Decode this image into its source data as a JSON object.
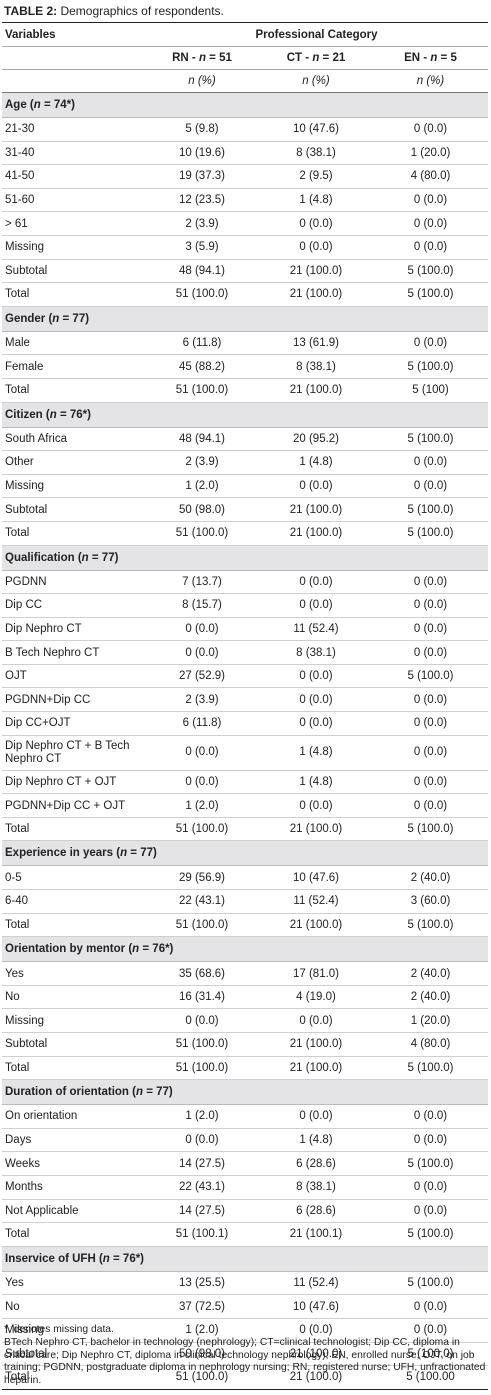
{
  "caption": {
    "label": "TABLE 2:",
    "text": " Demographics of respondents."
  },
  "header": {
    "variables": "Variables",
    "group": "Professional Category",
    "columns": [
      "RN - n = 51",
      "CT - n = 21",
      "EN - n = 5"
    ],
    "units": [
      "n (%)",
      "n (%)",
      "n (%)"
    ]
  },
  "sections": [
    {
      "title": "Age (n = 74*)",
      "rows": [
        {
          "label": "21-30",
          "values": [
            "5 (9.8)",
            "10 (47.6)",
            "0 (0.0)"
          ]
        },
        {
          "label": "31-40",
          "values": [
            "10 (19.6)",
            "8 (38.1)",
            "1 (20.0)"
          ]
        },
        {
          "label": "41-50",
          "values": [
            "19 (37.3)",
            "2 (9.5)",
            "4 (80.0)"
          ]
        },
        {
          "label": "51-60",
          "values": [
            "12 (23.5)",
            "1 (4.8)",
            "0 (0.0)"
          ]
        },
        {
          "label": "> 61",
          "values": [
            "2 (3.9)",
            "0 (0.0)",
            "0 (0.0)"
          ]
        },
        {
          "label": "Missing",
          "values": [
            "3 (5.9)",
            "0 (0.0)",
            "0 (0.0)"
          ]
        },
        {
          "label": "Subtotal",
          "values": [
            "48 (94.1)",
            "21 (100.0)",
            "5 (100.0)"
          ]
        },
        {
          "label": "Total",
          "values": [
            "51 (100.0)",
            "21 (100.0)",
            "5 (100.0)"
          ]
        }
      ]
    },
    {
      "title": "Gender (n = 77)",
      "rows": [
        {
          "label": "Male",
          "values": [
            "6 (11.8)",
            "13 (61.9)",
            "0 (0.0)"
          ]
        },
        {
          "label": "Female",
          "values": [
            "45 (88.2)",
            "8 (38.1)",
            "5 (100.0)"
          ]
        },
        {
          "label": "Total",
          "values": [
            "51 (100.0)",
            "21 (100.0)",
            "5 (100)"
          ]
        }
      ]
    },
    {
      "title": "Citizen (n = 76*)",
      "rows": [
        {
          "label": "South Africa",
          "values": [
            "48 (94.1)",
            "20 (95.2)",
            "5 (100.0)"
          ]
        },
        {
          "label": "Other",
          "values": [
            "2 (3.9)",
            "1 (4.8)",
            "0 (0.0)"
          ]
        },
        {
          "label": "Missing",
          "values": [
            "1 (2.0)",
            "0 (0.0)",
            "0 (0.0)"
          ]
        },
        {
          "label": "Subtotal",
          "values": [
            "50 (98.0)",
            "21 (100.0)",
            "5 (100.0)"
          ]
        },
        {
          "label": "Total",
          "values": [
            "51 (100.0)",
            "21 (100.0)",
            "5 (100.0)"
          ]
        }
      ]
    },
    {
      "title": "Qualification (n = 77)",
      "rows": [
        {
          "label": "PGDNN",
          "values": [
            "7 (13.7)",
            "0 (0.0)",
            "0 (0.0)"
          ]
        },
        {
          "label": "Dip CC",
          "values": [
            "8 (15.7)",
            "0 (0.0)",
            "0 (0.0)"
          ]
        },
        {
          "label": "Dip Nephro CT",
          "values": [
            "0 (0.0)",
            "11 (52.4)",
            "0 (0.0)"
          ]
        },
        {
          "label": "B Tech  Nephro CT",
          "values": [
            "0 (0.0)",
            "8 (38.1)",
            "0 (0.0)"
          ]
        },
        {
          "label": "OJT",
          "values": [
            "27 (52.9)",
            "0 (0.0)",
            "5 (100.0)"
          ]
        },
        {
          "label": "PGDNN+Dip CC",
          "values": [
            "2 (3.9)",
            "0 (0.0)",
            "0 (0.0)"
          ]
        },
        {
          "label": "Dip CC+OJT",
          "values": [
            "6 (11.8)",
            "0 (0.0)",
            "0 (0.0)"
          ]
        },
        {
          "label": "Dip Nephro CT + B Tech Nephro CT",
          "values": [
            "0 (0.0)",
            "1 (4.8)",
            "0 (0.0)"
          ],
          "tall": true
        },
        {
          "label": "Dip Nephro CT + OJT",
          "values": [
            "0 (0.0)",
            "1 (4.8)",
            "0 (0.0)"
          ]
        },
        {
          "label": "PGDNN+Dip CC + OJT",
          "values": [
            "1 (2.0)",
            "0 (0.0)",
            "0 (0.0)"
          ]
        },
        {
          "label": " Total",
          "values": [
            "51 (100.0)",
            "21 (100.0)",
            "5 (100.0)"
          ]
        }
      ]
    },
    {
      "title": "Experience in years (n = 77)",
      "rows": [
        {
          "label": "0-5",
          "values": [
            "29 (56.9)",
            "10 (47.6)",
            "2 (40.0)"
          ]
        },
        {
          "label": "6-40",
          "values": [
            "22 (43.1)",
            "11 (52.4)",
            "3 (60.0)"
          ]
        },
        {
          "label": "Total",
          "values": [
            "51 (100.0)",
            "21 (100.0)",
            "5 (100.0)"
          ]
        }
      ]
    },
    {
      "title": "Orientation by mentor (n = 76*)",
      "rows": [
        {
          "label": "Yes",
          "values": [
            "35 (68.6)",
            "17 (81.0)",
            "2 (40.0)"
          ]
        },
        {
          "label": "No",
          "values": [
            "16 (31.4)",
            "4 (19.0)",
            "2 (40.0)"
          ]
        },
        {
          "label": "Missing",
          "values": [
            "0 (0.0)",
            "0 (0.0)",
            "1 (20.0)"
          ]
        },
        {
          "label": "Subtotal",
          "values": [
            "51 (100.0)",
            "21 (100.0)",
            "4 (80.0)"
          ]
        },
        {
          "label": "Total",
          "values": [
            "51 (100.0)",
            "21 (100.0)",
            "5 (100.0)"
          ]
        }
      ]
    },
    {
      "title": "Duration of orientation (n = 77)",
      "rows": [
        {
          "label": "On orientation",
          "values": [
            "1 (2.0)",
            "0 (0.0)",
            "0 (0.0)"
          ]
        },
        {
          "label": "Days",
          "values": [
            "0 (0.0)",
            "1 (4.8)",
            "0 (0.0)"
          ]
        },
        {
          "label": "Weeks",
          "values": [
            "14 (27.5)",
            "6 (28.6)",
            "5 (100.0)"
          ]
        },
        {
          "label": "Months",
          "values": [
            "22 (43.1)",
            "8 (38.1)",
            "0 (0.0)"
          ]
        },
        {
          "label": "Not Applicable",
          "values": [
            "14 (27.5)",
            "6 (28.6)",
            "0 (0.0)"
          ]
        },
        {
          "label": "Total",
          "values": [
            "51 (100.1)",
            "21 (100.1)",
            "5 (100.0)"
          ]
        }
      ]
    },
    {
      "title": "Inservice of UFH (n = 76*)",
      "rows": [
        {
          "label": "Yes",
          "values": [
            "13 (25.5)",
            "11 (52.4)",
            "5 (100.0)"
          ]
        },
        {
          "label": "No",
          "values": [
            "37 (72.5)",
            "10 (47.6)",
            "0 (0.0)"
          ]
        },
        {
          "label": "Missing",
          "values": [
            "1 (2.0)",
            "0 (0.0)",
            "0 (0.0)"
          ]
        },
        {
          "label": "Subtotal",
          "values": [
            "50 (98.0)",
            "21 (100.0)",
            "5 (100.0)"
          ]
        },
        {
          "label": "Total",
          "values": [
            "51 (100.0)",
            "21 (100.0)",
            "5 (100.00"
          ]
        }
      ]
    }
  ],
  "footnotes": [
    "*, denotes missing data.",
    "BTech Nephro CT, bachelor in technology (nephrology); CT=clinical technologist;  Dip CC, diploma in critical care; Dip Nephro CT, diploma in clinical technology nephrology); EN, enrolled nurse; OJT,  on job training; PGDNN, postgraduate diploma in nephrology nursing; RN, registered nurse;  UFH, unfractionated heparin."
  ]
}
